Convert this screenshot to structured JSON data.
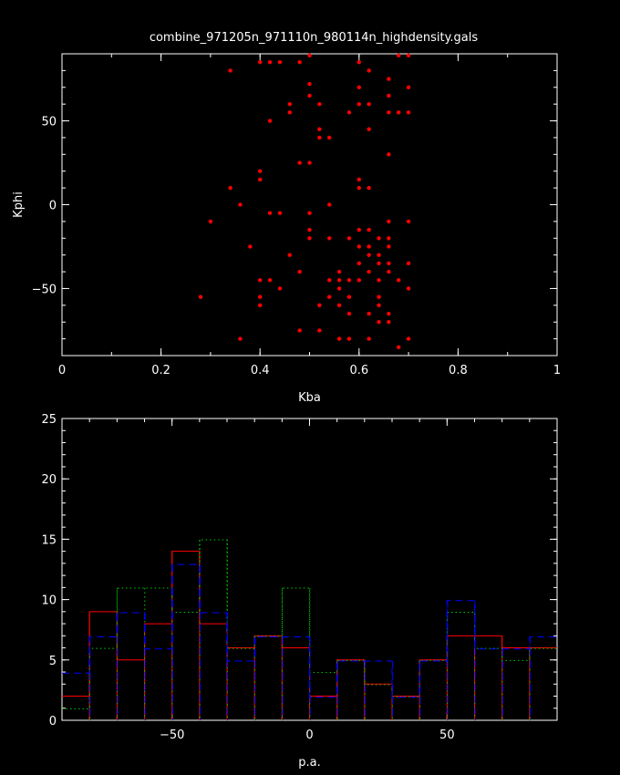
{
  "title": "combine_971205n_971110n_980114n_highdensity.gals",
  "chart_data": [
    {
      "type": "scatter",
      "xlabel": "Kba",
      "ylabel": "Kphi",
      "xlim": [
        0,
        1
      ],
      "ylim": [
        -90,
        90
      ],
      "xticks": [
        0,
        0.2,
        0.4,
        0.6,
        0.8,
        1
      ],
      "xtick_labels": [
        "0",
        "0.2",
        "0.4",
        "0.6",
        "0.8",
        "1"
      ],
      "yticks": [
        -50,
        0,
        50
      ],
      "ytick_labels": [
        "−50",
        "0",
        "50"
      ],
      "grid": false,
      "series": [
        {
          "color": "#ff0000",
          "points": [
            [
              0.5,
              89
            ],
            [
              0.68,
              89
            ],
            [
              0.7,
              89
            ],
            [
              0.4,
              85
            ],
            [
              0.42,
              85
            ],
            [
              0.44,
              85
            ],
            [
              0.48,
              85
            ],
            [
              0.6,
              85
            ],
            [
              0.34,
              80
            ],
            [
              0.62,
              80
            ],
            [
              0.66,
              75
            ],
            [
              0.5,
              72
            ],
            [
              0.6,
              70
            ],
            [
              0.7,
              70
            ],
            [
              0.5,
              65
            ],
            [
              0.66,
              65
            ],
            [
              0.46,
              60
            ],
            [
              0.52,
              60
            ],
            [
              0.6,
              60
            ],
            [
              0.62,
              60
            ],
            [
              0.46,
              55
            ],
            [
              0.58,
              55
            ],
            [
              0.66,
              55
            ],
            [
              0.68,
              55
            ],
            [
              0.7,
              55
            ],
            [
              0.42,
              50
            ],
            [
              0.52,
              45
            ],
            [
              0.62,
              45
            ],
            [
              0.52,
              40
            ],
            [
              0.54,
              40
            ],
            [
              0.66,
              30
            ],
            [
              0.48,
              25
            ],
            [
              0.5,
              25
            ],
            [
              0.4,
              20
            ],
            [
              0.4,
              15
            ],
            [
              0.6,
              15
            ],
            [
              0.34,
              10
            ],
            [
              0.6,
              10
            ],
            [
              0.62,
              10
            ],
            [
              0.36,
              0
            ],
            [
              0.54,
              0
            ],
            [
              0.42,
              -5
            ],
            [
              0.44,
              -5
            ],
            [
              0.5,
              -5
            ],
            [
              0.3,
              -10
            ],
            [
              0.66,
              -10
            ],
            [
              0.7,
              -10
            ],
            [
              0.5,
              -15
            ],
            [
              0.6,
              -15
            ],
            [
              0.62,
              -15
            ],
            [
              0.5,
              -20
            ],
            [
              0.54,
              -20
            ],
            [
              0.58,
              -20
            ],
            [
              0.64,
              -20
            ],
            [
              0.66,
              -20
            ],
            [
              0.38,
              -25
            ],
            [
              0.6,
              -25
            ],
            [
              0.62,
              -25
            ],
            [
              0.66,
              -25
            ],
            [
              0.46,
              -30
            ],
            [
              0.62,
              -30
            ],
            [
              0.64,
              -30
            ],
            [
              0.6,
              -35
            ],
            [
              0.64,
              -35
            ],
            [
              0.66,
              -35
            ],
            [
              0.7,
              -35
            ],
            [
              0.48,
              -40
            ],
            [
              0.56,
              -40
            ],
            [
              0.62,
              -40
            ],
            [
              0.66,
              -40
            ],
            [
              0.4,
              -45
            ],
            [
              0.42,
              -45
            ],
            [
              0.54,
              -45
            ],
            [
              0.56,
              -45
            ],
            [
              0.58,
              -45
            ],
            [
              0.6,
              -45
            ],
            [
              0.64,
              -45
            ],
            [
              0.68,
              -45
            ],
            [
              0.44,
              -50
            ],
            [
              0.56,
              -50
            ],
            [
              0.7,
              -50
            ],
            [
              0.28,
              -55
            ],
            [
              0.4,
              -55
            ],
            [
              0.54,
              -55
            ],
            [
              0.58,
              -55
            ],
            [
              0.64,
              -55
            ],
            [
              0.4,
              -60
            ],
            [
              0.52,
              -60
            ],
            [
              0.56,
              -60
            ],
            [
              0.64,
              -60
            ],
            [
              0.58,
              -65
            ],
            [
              0.62,
              -65
            ],
            [
              0.66,
              -65
            ],
            [
              0.64,
              -70
            ],
            [
              0.66,
              -70
            ],
            [
              0.48,
              -75
            ],
            [
              0.52,
              -75
            ],
            [
              0.36,
              -80
            ],
            [
              0.56,
              -80
            ],
            [
              0.58,
              -80
            ],
            [
              0.62,
              -80
            ],
            [
              0.7,
              -80
            ],
            [
              0.68,
              -85
            ]
          ]
        }
      ]
    },
    {
      "type": "histogram",
      "xlabel": "p.a.",
      "ylabel": "",
      "xlim": [
        -90,
        90
      ],
      "ylim": [
        0,
        25
      ],
      "xticks": [
        -50,
        0,
        50
      ],
      "xtick_labels": [
        "−50",
        "0",
        "50"
      ],
      "yticks": [
        0,
        5,
        10,
        15,
        20,
        25
      ],
      "ytick_labels": [
        "0",
        "5",
        "10",
        "15",
        "20",
        "25"
      ],
      "grid": false,
      "bin_edges": [
        -90,
        -80,
        -70,
        -60,
        -50,
        -40,
        -30,
        -20,
        -10,
        0,
        10,
        20,
        30,
        40,
        50,
        60,
        70,
        80,
        90
      ],
      "series": [
        {
          "color": "#ff0000",
          "style": "solid",
          "values": [
            2,
            9,
            5,
            8,
            14,
            8,
            6,
            7,
            6,
            2,
            5,
            3,
            2,
            5,
            7,
            7,
            6,
            6
          ]
        },
        {
          "color": "#00cc00",
          "style": "dotted",
          "values": [
            1,
            6,
            11,
            11,
            9,
            15,
            6,
            7,
            11,
            4,
            5,
            3,
            2,
            5,
            9,
            6,
            5,
            6
          ]
        },
        {
          "color": "#0000ff",
          "style": "dashed",
          "values": [
            4,
            7,
            9,
            6,
            13,
            9,
            5,
            7,
            7,
            2,
            5,
            5,
            2,
            5,
            10,
            6,
            6,
            7
          ]
        }
      ]
    }
  ]
}
